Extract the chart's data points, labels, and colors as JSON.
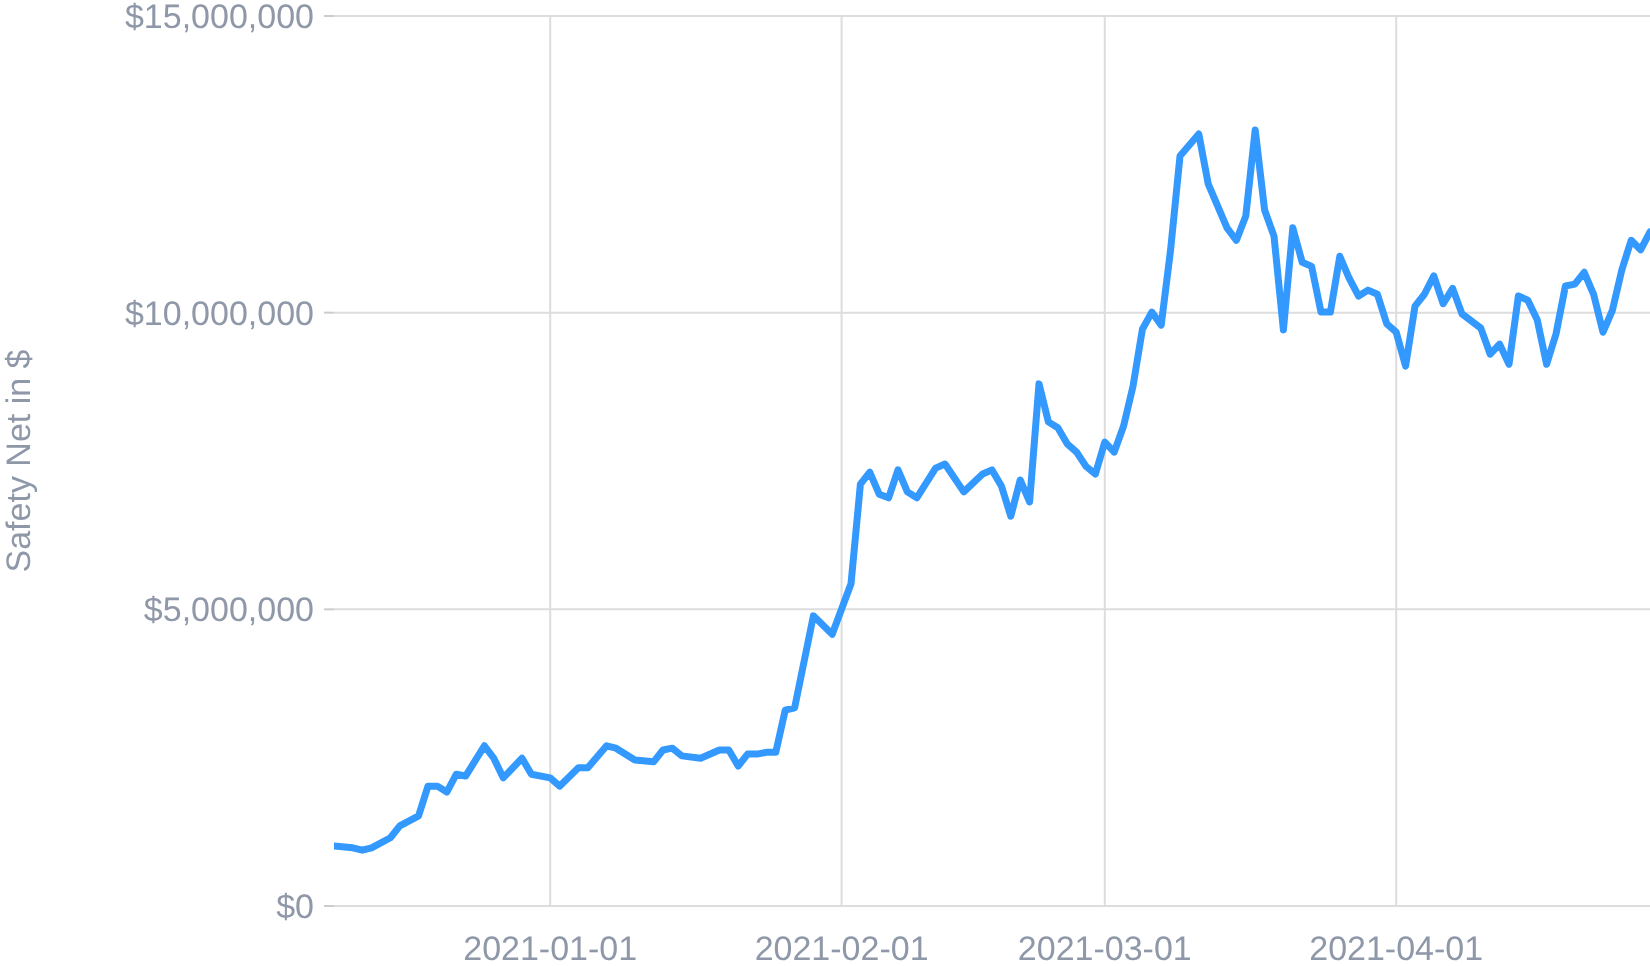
{
  "chart_data": {
    "type": "line",
    "ylabel": "Safety Net in $",
    "xlim": [
      "2020-12-09",
      "2021-04-28"
    ],
    "xticks": [
      {
        "value": "2021-01-01",
        "label": "2021-01-01"
      },
      {
        "value": "2021-02-01",
        "label": "2021-02-01"
      },
      {
        "value": "2021-03-01",
        "label": "2021-03-01"
      },
      {
        "value": "2021-04-01",
        "label": "2021-04-01"
      }
    ],
    "ylim": [
      0,
      15000000
    ],
    "yticks": [
      {
        "value": 0,
        "label": "$0"
      },
      {
        "value": 5000000,
        "label": "$5,000,000"
      },
      {
        "value": 10000000,
        "label": "$10,000,000"
      },
      {
        "value": 15000000,
        "label": "$15,000,000"
      }
    ],
    "grid": true,
    "marker": "none",
    "line_style": "solid",
    "series": [
      {
        "color": "#3399ff",
        "x": [
          "2020-12-09",
          "2020-12-11",
          "2020-12-12",
          "2020-12-13",
          "2020-12-15",
          "2020-12-16",
          "2020-12-18",
          "2020-12-19",
          "2020-12-20",
          "2020-12-21",
          "2020-12-22",
          "2020-12-23",
          "2020-12-25",
          "2020-12-26",
          "2020-12-27",
          "2020-12-29",
          "2020-12-30",
          "2021-01-01",
          "2021-01-02",
          "2021-01-04",
          "2021-01-05",
          "2021-01-07",
          "2021-01-08",
          "2021-01-10",
          "2021-01-12",
          "2021-01-13",
          "2021-01-14",
          "2021-01-15",
          "2021-01-17",
          "2021-01-19",
          "2021-01-20",
          "2021-01-21",
          "2021-01-22",
          "2021-01-23",
          "2021-01-24",
          "2021-01-25",
          "2021-01-26",
          "2021-01-27",
          "2021-01-29",
          "2021-01-31",
          "2021-02-02",
          "2021-02-03",
          "2021-02-04",
          "2021-02-05",
          "2021-02-06",
          "2021-02-07",
          "2021-02-08",
          "2021-02-09",
          "2021-02-11",
          "2021-02-12",
          "2021-02-14",
          "2021-02-16",
          "2021-02-17",
          "2021-02-18",
          "2021-02-19",
          "2021-02-20",
          "2021-02-21",
          "2021-02-22",
          "2021-02-23",
          "2021-02-24",
          "2021-02-25",
          "2021-02-26",
          "2021-02-27",
          "2021-02-28",
          "2021-03-01",
          "2021-03-02",
          "2021-03-03",
          "2021-03-04",
          "2021-03-05",
          "2021-03-06",
          "2021-03-07",
          "2021-03-08",
          "2021-03-09",
          "2021-03-11",
          "2021-03-12",
          "2021-03-13",
          "2021-03-14",
          "2021-03-15",
          "2021-03-16",
          "2021-03-17",
          "2021-03-18",
          "2021-03-19",
          "2021-03-20",
          "2021-03-21",
          "2021-03-22",
          "2021-03-23",
          "2021-03-24",
          "2021-03-25",
          "2021-03-26",
          "2021-03-27",
          "2021-03-28",
          "2021-03-29",
          "2021-03-30",
          "2021-03-31",
          "2021-04-01",
          "2021-04-02",
          "2021-04-03",
          "2021-04-04",
          "2021-04-05",
          "2021-04-06",
          "2021-04-07",
          "2021-04-08",
          "2021-04-10",
          "2021-04-11",
          "2021-04-12",
          "2021-04-13",
          "2021-04-14",
          "2021-04-15",
          "2021-04-16",
          "2021-04-17",
          "2021-04-18",
          "2021-04-19",
          "2021-04-20",
          "2021-04-21",
          "2021-04-22",
          "2021-04-23",
          "2021-04-24",
          "2021-04-25",
          "2021-04-26",
          "2021-04-27",
          "2021-04-28"
        ],
        "values": [
          1010000,
          980000,
          940000,
          980000,
          1150000,
          1350000,
          1520000,
          2020000,
          2020000,
          1920000,
          2220000,
          2190000,
          2700000,
          2490000,
          2160000,
          2490000,
          2220000,
          2160000,
          2020000,
          2330000,
          2330000,
          2700000,
          2660000,
          2460000,
          2430000,
          2630000,
          2660000,
          2530000,
          2490000,
          2630000,
          2630000,
          2360000,
          2560000,
          2560000,
          2590000,
          2590000,
          3300000,
          3340000,
          4890000,
          4580000,
          5430000,
          7110000,
          7310000,
          6940000,
          6880000,
          7350000,
          6980000,
          6880000,
          7380000,
          7450000,
          6980000,
          7280000,
          7350000,
          7080000,
          6570000,
          7180000,
          6810000,
          8800000,
          8160000,
          8060000,
          7790000,
          7650000,
          7410000,
          7280000,
          7820000,
          7650000,
          8090000,
          8760000,
          9720000,
          10010000,
          9790000,
          11060000,
          12640000,
          13010000,
          12170000,
          11800000,
          11430000,
          11220000,
          11630000,
          13080000,
          11730000,
          11290000,
          9710000,
          11430000,
          10850000,
          10780000,
          10010000,
          10010000,
          10950000,
          10580000,
          10280000,
          10380000,
          10310000,
          9810000,
          9670000,
          9100000,
          10110000,
          10310000,
          10620000,
          10150000,
          10410000,
          9980000,
          9740000,
          9300000,
          9470000,
          9130000,
          10280000,
          10210000,
          9880000,
          9130000,
          9640000,
          10450000,
          10480000,
          10680000,
          10310000,
          9670000,
          10040000,
          10720000,
          11220000,
          11060000,
          11360000
        ]
      }
    ]
  }
}
